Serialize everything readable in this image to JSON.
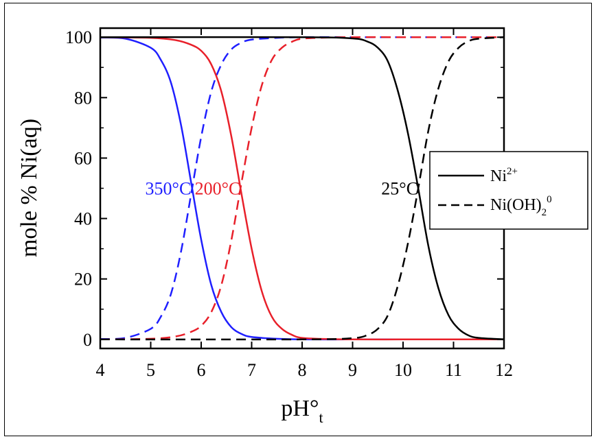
{
  "chart_data": {
    "type": "line",
    "xlabel": "pH°",
    "xlabel_sub": "t",
    "ylabel": "mole % Ni(aq)",
    "xlim": [
      4,
      12
    ],
    "ylim": [
      -3,
      103
    ],
    "xticks": [
      "4",
      "5",
      "6",
      "7",
      "8",
      "9",
      "10",
      "11",
      "12"
    ],
    "yticks": [
      "0",
      "20",
      "40",
      "60",
      "80",
      "100"
    ],
    "grid": false,
    "legend_placement": "right",
    "legend": [
      {
        "label": "Ni",
        "sup": "2+",
        "sub": "",
        "style": "solid"
      },
      {
        "label": "Ni(OH)",
        "sub": "2",
        "sup": "0",
        "style": "dashed"
      }
    ],
    "curve_labels": [
      {
        "text": "350°C",
        "color": "#1f1fff",
        "x": 5.8,
        "y": 50
      },
      {
        "text": "200°C",
        "color": "#e8202a",
        "x": 6.78,
        "y": 50
      },
      {
        "text": "25°C",
        "color": "#000000",
        "x": 10.3,
        "y": 50
      }
    ],
    "series": [
      {
        "species": "Ni2+",
        "temperature": "350°C",
        "color": "#1f1fff",
        "style": "solid",
        "x": [
          4.0,
          4.5,
          5.0,
          5.2,
          5.4,
          5.6,
          5.8,
          6.0,
          6.2,
          6.4,
          6.6,
          6.8,
          7.0,
          7.5,
          8.0,
          9.0,
          10.0,
          11.0,
          12.0
        ],
        "y": [
          99.9,
          99.5,
          96.5,
          92.5,
          85,
          71,
          52,
          33,
          18,
          9,
          4,
          1.8,
          0.8,
          0.2,
          0,
          0,
          0,
          0,
          0
        ]
      },
      {
        "species": "Ni(OH)2 0",
        "temperature": "350°C",
        "color": "#1f1fff",
        "style": "dashed",
        "x": [
          4.0,
          4.5,
          5.0,
          5.2,
          5.4,
          5.6,
          5.8,
          6.0,
          6.2,
          6.4,
          6.6,
          6.8,
          7.0,
          7.5,
          8.0,
          9.0,
          10.0,
          11.0,
          12.0
        ],
        "y": [
          0.1,
          0.5,
          3.5,
          7.5,
          15,
          29,
          48,
          67,
          82,
          91,
          96,
          98.2,
          99.2,
          99.8,
          100,
          100,
          100,
          100,
          100
        ]
      },
      {
        "species": "Ni2+",
        "temperature": "200°C",
        "color": "#e8202a",
        "style": "solid",
        "x": [
          4.0,
          5.0,
          5.5,
          5.8,
          6.0,
          6.2,
          6.4,
          6.6,
          6.8,
          7.0,
          7.2,
          7.4,
          7.6,
          7.8,
          8.0,
          8.5,
          9.0,
          10.0,
          11.0,
          12.0
        ],
        "y": [
          100,
          99.8,
          99,
          97.5,
          95.5,
          91,
          82,
          67,
          48,
          30,
          16,
          7.5,
          3.5,
          1.5,
          0.5,
          0.1,
          0,
          0,
          0,
          0
        ]
      },
      {
        "species": "Ni(OH)2 0",
        "temperature": "200°C",
        "color": "#e8202a",
        "style": "dashed",
        "x": [
          4.0,
          5.0,
          5.5,
          5.8,
          6.0,
          6.2,
          6.4,
          6.6,
          6.8,
          7.0,
          7.2,
          7.4,
          7.6,
          7.8,
          8.0,
          8.5,
          9.0,
          10.0,
          11.0,
          12.0
        ],
        "y": [
          0,
          0.2,
          1,
          2.5,
          4.5,
          9,
          18,
          33,
          52,
          70,
          84,
          92.5,
          96.5,
          98.5,
          99.5,
          99.9,
          100,
          100,
          100,
          100
        ]
      },
      {
        "species": "Ni2+",
        "temperature": "25°C",
        "color": "#000000",
        "style": "solid",
        "x": [
          4.0,
          8.0,
          9.0,
          9.3,
          9.5,
          9.7,
          9.9,
          10.1,
          10.3,
          10.5,
          10.7,
          10.9,
          11.1,
          11.3,
          11.5,
          12.0
        ],
        "y": [
          100,
          100,
          99.6,
          98.5,
          96.5,
          92,
          82,
          68,
          50,
          31,
          17,
          8,
          3.5,
          1.3,
          0.5,
          0
        ]
      },
      {
        "species": "Ni(OH)2 0",
        "temperature": "25°C",
        "color": "#000000",
        "style": "dashed",
        "x": [
          4.0,
          8.0,
          9.0,
          9.3,
          9.5,
          9.7,
          9.9,
          10.1,
          10.3,
          10.5,
          10.7,
          10.9,
          11.1,
          11.3,
          11.5,
          12.0
        ],
        "y": [
          0,
          0,
          0.4,
          1.5,
          3.5,
          8,
          18,
          32,
          50,
          69,
          83,
          92,
          96.5,
          98.7,
          99.5,
          100
        ]
      }
    ]
  }
}
